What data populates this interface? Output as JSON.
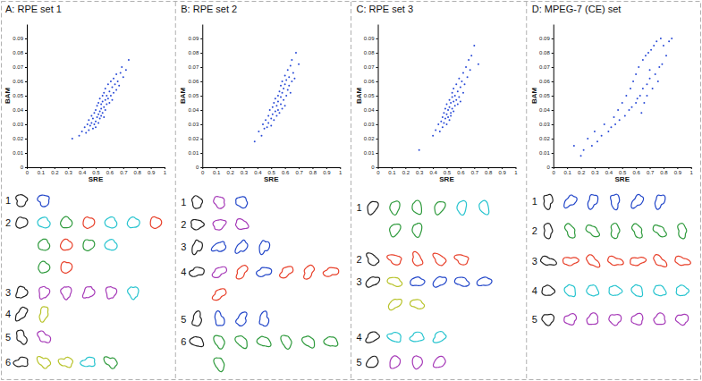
{
  "chart_data": [
    {
      "type": "scatter",
      "title": "A: RPE set 1",
      "x_label": "SRE",
      "y_label": "BAM",
      "color": "#2a4bd7",
      "xlim": [
        0,
        1
      ],
      "xticks": [
        0,
        0.1,
        0.2,
        0.3,
        0.4,
        0.5,
        0.6,
        0.7,
        0.8,
        0.9,
        1
      ],
      "ylim": [
        0,
        0.1
      ],
      "yticks": [
        0,
        0.01,
        0.02,
        0.03,
        0.04,
        0.05,
        0.06,
        0.07,
        0.08,
        0.09
      ],
      "x": [
        0.33,
        0.38,
        0.4,
        0.42,
        0.43,
        0.44,
        0.45,
        0.45,
        0.46,
        0.47,
        0.47,
        0.48,
        0.48,
        0.49,
        0.49,
        0.5,
        0.5,
        0.5,
        0.51,
        0.51,
        0.52,
        0.52,
        0.52,
        0.53,
        0.53,
        0.53,
        0.54,
        0.54,
        0.54,
        0.55,
        0.55,
        0.55,
        0.56,
        0.56,
        0.56,
        0.57,
        0.57,
        0.57,
        0.58,
        0.58,
        0.59,
        0.59,
        0.6,
        0.6,
        0.61,
        0.61,
        0.62,
        0.62,
        0.63,
        0.63,
        0.64,
        0.65,
        0.65,
        0.66,
        0.67,
        0.68,
        0.69,
        0.7,
        0.72,
        0.74
      ],
      "values": [
        0.02,
        0.022,
        0.025,
        0.028,
        0.024,
        0.03,
        0.026,
        0.033,
        0.029,
        0.031,
        0.036,
        0.027,
        0.034,
        0.038,
        0.03,
        0.032,
        0.04,
        0.028,
        0.035,
        0.043,
        0.037,
        0.031,
        0.045,
        0.039,
        0.034,
        0.048,
        0.041,
        0.036,
        0.044,
        0.038,
        0.046,
        0.05,
        0.042,
        0.035,
        0.052,
        0.04,
        0.047,
        0.055,
        0.044,
        0.05,
        0.048,
        0.058,
        0.045,
        0.053,
        0.05,
        0.06,
        0.047,
        0.056,
        0.052,
        0.062,
        0.058,
        0.054,
        0.065,
        0.06,
        0.057,
        0.066,
        0.07,
        0.063,
        0.068,
        0.075
      ]
    },
    {
      "type": "scatter",
      "title": "B: RPE set 2",
      "x_label": "SRE",
      "y_label": "BAM",
      "color": "#2a4bd7",
      "xlim": [
        0,
        1
      ],
      "xticks": [
        0,
        0.1,
        0.2,
        0.3,
        0.4,
        0.5,
        0.6,
        0.7,
        0.8,
        0.9,
        1
      ],
      "ylim": [
        0,
        0.1
      ],
      "yticks": [
        0,
        0.01,
        0.02,
        0.03,
        0.04,
        0.05,
        0.06,
        0.07,
        0.08,
        0.09
      ],
      "x": [
        0.38,
        0.41,
        0.43,
        0.44,
        0.45,
        0.46,
        0.47,
        0.48,
        0.48,
        0.49,
        0.5,
        0.5,
        0.51,
        0.51,
        0.52,
        0.52,
        0.53,
        0.53,
        0.54,
        0.54,
        0.55,
        0.55,
        0.55,
        0.56,
        0.56,
        0.57,
        0.57,
        0.57,
        0.58,
        0.58,
        0.58,
        0.59,
        0.59,
        0.6,
        0.6,
        0.6,
        0.61,
        0.61,
        0.62,
        0.62,
        0.63,
        0.63,
        0.64,
        0.64,
        0.65,
        0.65,
        0.66,
        0.67,
        0.68,
        0.7
      ],
      "values": [
        0.018,
        0.025,
        0.022,
        0.03,
        0.027,
        0.033,
        0.028,
        0.036,
        0.031,
        0.04,
        0.034,
        0.029,
        0.042,
        0.037,
        0.045,
        0.033,
        0.039,
        0.048,
        0.036,
        0.043,
        0.05,
        0.04,
        0.046,
        0.038,
        0.053,
        0.044,
        0.049,
        0.057,
        0.041,
        0.052,
        0.06,
        0.047,
        0.055,
        0.043,
        0.058,
        0.064,
        0.05,
        0.061,
        0.054,
        0.068,
        0.057,
        0.063,
        0.052,
        0.071,
        0.06,
        0.075,
        0.066,
        0.062,
        0.08,
        0.072
      ]
    },
    {
      "type": "scatter",
      "title": "C: RPE set 3",
      "x_label": "SRE",
      "y_label": "BAM",
      "color": "#2a4bd7",
      "xlim": [
        0,
        1
      ],
      "xticks": [
        0,
        0.1,
        0.2,
        0.3,
        0.4,
        0.5,
        0.6,
        0.7,
        0.8,
        0.9,
        1
      ],
      "ylim": [
        0,
        0.1
      ],
      "yticks": [
        0,
        0.01,
        0.02,
        0.03,
        0.04,
        0.05,
        0.06,
        0.07,
        0.08,
        0.09
      ],
      "x": [
        0.3,
        0.4,
        0.42,
        0.44,
        0.45,
        0.46,
        0.47,
        0.47,
        0.48,
        0.48,
        0.49,
        0.49,
        0.5,
        0.5,
        0.5,
        0.51,
        0.51,
        0.52,
        0.52,
        0.52,
        0.53,
        0.53,
        0.53,
        0.54,
        0.54,
        0.54,
        0.55,
        0.55,
        0.55,
        0.56,
        0.56,
        0.57,
        0.57,
        0.58,
        0.58,
        0.59,
        0.59,
        0.6,
        0.6,
        0.61,
        0.62,
        0.62,
        0.63,
        0.64,
        0.65,
        0.66,
        0.67,
        0.68,
        0.7,
        0.73
      ],
      "values": [
        0.012,
        0.022,
        0.026,
        0.03,
        0.025,
        0.032,
        0.028,
        0.035,
        0.031,
        0.038,
        0.034,
        0.041,
        0.03,
        0.037,
        0.044,
        0.035,
        0.04,
        0.033,
        0.042,
        0.047,
        0.038,
        0.045,
        0.036,
        0.041,
        0.049,
        0.052,
        0.039,
        0.046,
        0.055,
        0.043,
        0.05,
        0.047,
        0.058,
        0.044,
        0.053,
        0.049,
        0.062,
        0.046,
        0.056,
        0.06,
        0.052,
        0.066,
        0.058,
        0.07,
        0.063,
        0.075,
        0.068,
        0.078,
        0.085,
        0.072
      ]
    },
    {
      "type": "scatter",
      "title": "D: MPEG-7 (CE) set",
      "x_label": "SRE",
      "y_label": "BAM",
      "color": "#2a4bd7",
      "xlim": [
        0,
        1
      ],
      "xticks": [
        0,
        0.1,
        0.2,
        0.3,
        0.4,
        0.5,
        0.6,
        0.7,
        0.8,
        0.9,
        1
      ],
      "ylim": [
        0,
        0.1
      ],
      "yticks": [
        0,
        0.01,
        0.02,
        0.03,
        0.04,
        0.05,
        0.06,
        0.07,
        0.08,
        0.09
      ],
      "x": [
        0.15,
        0.2,
        0.22,
        0.25,
        0.28,
        0.3,
        0.32,
        0.35,
        0.37,
        0.4,
        0.42,
        0.44,
        0.45,
        0.47,
        0.48,
        0.5,
        0.52,
        0.53,
        0.55,
        0.56,
        0.57,
        0.58,
        0.6,
        0.6,
        0.61,
        0.62,
        0.63,
        0.64,
        0.65,
        0.65,
        0.66,
        0.67,
        0.68,
        0.68,
        0.69,
        0.7,
        0.7,
        0.71,
        0.72,
        0.73,
        0.74,
        0.75,
        0.76,
        0.77,
        0.78,
        0.79,
        0.8,
        0.82,
        0.84,
        0.86
      ],
      "values": [
        0.015,
        0.008,
        0.012,
        0.02,
        0.015,
        0.025,
        0.018,
        0.022,
        0.03,
        0.025,
        0.028,
        0.035,
        0.03,
        0.04,
        0.033,
        0.045,
        0.036,
        0.05,
        0.04,
        0.055,
        0.042,
        0.06,
        0.045,
        0.065,
        0.048,
        0.07,
        0.05,
        0.038,
        0.075,
        0.055,
        0.045,
        0.078,
        0.058,
        0.05,
        0.08,
        0.062,
        0.068,
        0.082,
        0.055,
        0.085,
        0.065,
        0.088,
        0.06,
        0.07,
        0.09,
        0.072,
        0.085,
        0.078,
        0.088,
        0.09
      ]
    }
  ],
  "shape_groups": [
    [
      "1",
      "2",
      "3",
      "4",
      "5",
      "6"
    ],
    [
      "1",
      "2",
      "3",
      "4",
      "5",
      "6"
    ],
    [
      "1",
      "2",
      "3",
      "4",
      "5"
    ],
    [
      "1",
      "2",
      "3",
      "4",
      "5"
    ]
  ]
}
